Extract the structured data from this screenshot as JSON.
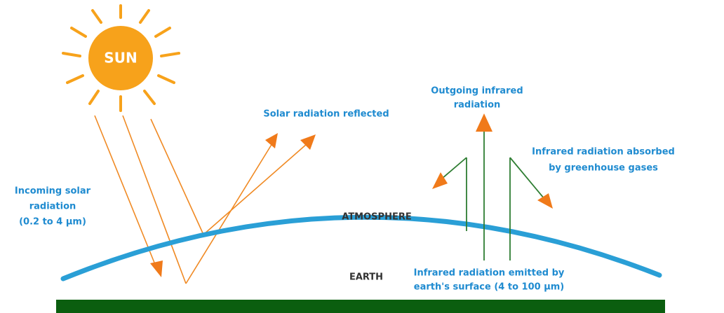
{
  "sun": {
    "label": "SUN"
  },
  "labels": {
    "incoming": [
      "Incoming solar",
      "radiation",
      "(0.2 to 4 μm)"
    ],
    "reflected": [
      "Solar radiation reflected"
    ],
    "outgoing": [
      "Outgoing infrared",
      "radiation"
    ],
    "absorbed": [
      "Infrared radiation absorbed",
      "by greenhouse gases"
    ],
    "atmosphere": [
      "ATMOSPHERE"
    ],
    "earth": [
      "EARTH"
    ],
    "emitted": [
      "Infrared radiation emitted by",
      "earth's surface (4 to 100 μm)"
    ]
  }
}
